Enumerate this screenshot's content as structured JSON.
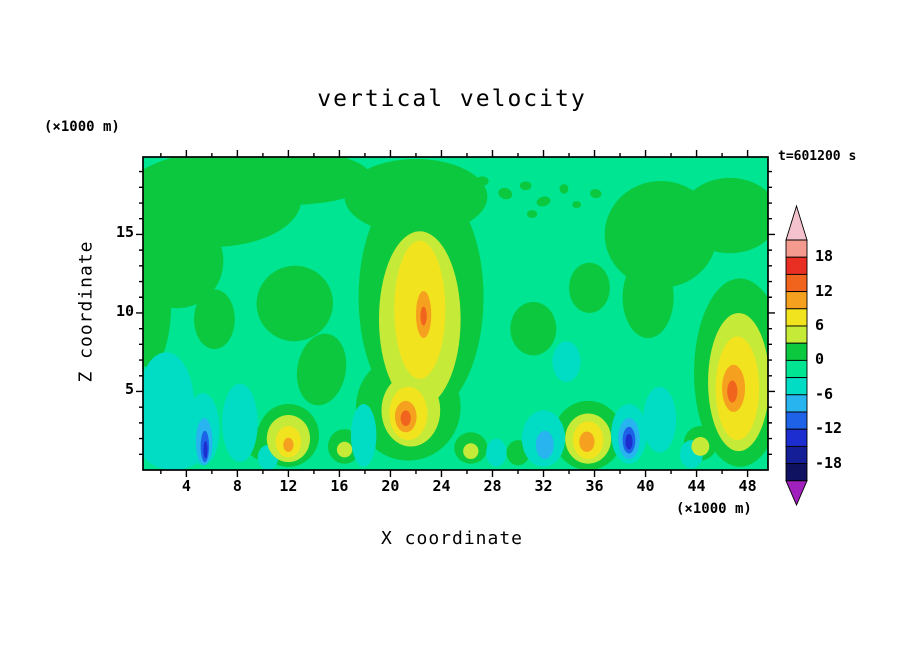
{
  "page": {
    "background": "#ffffff",
    "text_color": "#000000"
  },
  "header": {
    "title": "vertical velocity",
    "timestamp": "t=601200 s"
  },
  "axes": {
    "x": {
      "label": "X coordinate",
      "units": "(×1000 m)",
      "ticks_labeled": [
        4,
        8,
        12,
        16,
        20,
        24,
        28,
        32,
        36,
        40,
        44,
        48
      ],
      "minor_step": 2,
      "range": [
        0.6,
        49.6
      ]
    },
    "y": {
      "label": "Z coordinate",
      "units": "(×1000 m)",
      "ticks_labeled": [
        5,
        10,
        15
      ],
      "minor_step": 1,
      "range": [
        0,
        19.93
      ]
    }
  },
  "colorbar": {
    "labels": [
      18,
      12,
      6,
      0,
      -6,
      -12,
      -18
    ],
    "level_boundaries": [
      21,
      18,
      15,
      12,
      9,
      6,
      3,
      0,
      -3,
      -6,
      -9,
      -12,
      -15,
      -18,
      -21
    ],
    "segment_colors_top_to_bottom": [
      "#f59a8e",
      "#e92e24",
      "#f0641e",
      "#f5a01e",
      "#f2e31f",
      "#c6ea38",
      "#0cc83e",
      "#00e591",
      "#00ddc4",
      "#28b4ee",
      "#1e62e8",
      "#1c2ed0",
      "#141e96",
      "#0e1260"
    ],
    "above_arrow_color": "#f3c2cc",
    "below_arrow_color": "#a021bc"
  },
  "chart_data": {
    "type": "heatmap",
    "title": "vertical velocity",
    "xlabel": "X coordinate (×1000 m)",
    "ylabel": "Z coordinate (×1000 m)",
    "time_annotation": "t=601200 s",
    "x_range": [
      0.6,
      49.6
    ],
    "z_range": [
      0,
      19.93
    ],
    "contour_interval": 3,
    "value_range_shown": [
      -21,
      21
    ],
    "background": {
      "range": "-3 to 0",
      "color": "#00e591"
    },
    "levels": {
      "g": {
        "range": "0 to 3",
        "color": "#0cc83e"
      },
      "yg": {
        "range": "3 to 6",
        "color": "#c6ea38"
      },
      "y": {
        "range": "6 to 9",
        "color": "#f2e31f"
      },
      "o": {
        "range": "9 to 12",
        "color": "#f5a01e"
      },
      "ro": {
        "range": "12 to 15",
        "color": "#f0641e"
      },
      "c1": {
        "range": "-6 to -3",
        "color": "#00ddc4"
      },
      "c2": {
        "range": "-9 to -6",
        "color": "#28b4ee"
      },
      "b": {
        "range": "-12 to -9",
        "color": "#1e62e8"
      },
      "db": {
        "range": "-15 to -12",
        "color": "#1c2ed0"
      }
    },
    "features": [
      {
        "l": "g",
        "x": 6.0,
        "z": 17.2,
        "rx": 7.0,
        "rz": 3.0,
        "rot": 0
      },
      {
        "l": "g",
        "x": 12.5,
        "z": 18.6,
        "rx": 6.0,
        "rz": 1.7,
        "rot": 0
      },
      {
        "l": "g",
        "x": 3.3,
        "z": 13.3,
        "rx": 3.6,
        "rz": 3.0,
        "rot": 0
      },
      {
        "l": "g",
        "x": 1.1,
        "z": 10.5,
        "rx": 1.7,
        "rz": 4.0,
        "rot": 0
      },
      {
        "l": "g",
        "x": 6.2,
        "z": 9.6,
        "rx": 1.6,
        "rz": 1.9,
        "rot": 0
      },
      {
        "l": "g",
        "x": 12.5,
        "z": 10.6,
        "rx": 3.0,
        "rz": 2.4,
        "rot": -15
      },
      {
        "l": "g",
        "x": 14.6,
        "z": 6.4,
        "rx": 1.9,
        "rz": 2.3,
        "rot": 10
      },
      {
        "l": "g",
        "x": 22.4,
        "z": 11.0,
        "rx": 4.9,
        "rz": 7.6,
        "rot": 0
      },
      {
        "l": "g",
        "x": 22.0,
        "z": 17.4,
        "rx": 5.6,
        "rz": 2.4,
        "rot": 0
      },
      {
        "l": "g",
        "x": 21.4,
        "z": 4.0,
        "rx": 4.1,
        "rz": 3.4,
        "rot": 0
      },
      {
        "l": "g",
        "x": 31.2,
        "z": 9.0,
        "rx": 1.8,
        "rz": 1.7,
        "rot": 0
      },
      {
        "l": "g",
        "x": 35.6,
        "z": 11.6,
        "rx": 1.6,
        "rz": 1.6,
        "rot": 0
      },
      {
        "l": "g",
        "x": 41.2,
        "z": 15.0,
        "rx": 4.4,
        "rz": 3.4,
        "rot": 0
      },
      {
        "l": "g",
        "x": 40.2,
        "z": 11.0,
        "rx": 2.0,
        "rz": 2.6,
        "rot": 0
      },
      {
        "l": "g",
        "x": 46.6,
        "z": 16.2,
        "rx": 3.8,
        "rz": 2.4,
        "rot": 0
      },
      {
        "l": "g",
        "x": 47.4,
        "z": 6.2,
        "rx": 3.6,
        "rz": 6.0,
        "rot": 0
      },
      {
        "l": "g",
        "x": 12.0,
        "z": 2.2,
        "rx": 2.4,
        "rz": 2.0,
        "rot": 0
      },
      {
        "l": "g",
        "x": 16.4,
        "z": 1.5,
        "rx": 1.3,
        "rz": 1.1,
        "rot": 0
      },
      {
        "l": "g",
        "x": 26.3,
        "z": 1.4,
        "rx": 1.3,
        "rz": 1.0,
        "rot": 0
      },
      {
        "l": "g",
        "x": 30.0,
        "z": 1.1,
        "rx": 0.9,
        "rz": 0.8,
        "rot": 0
      },
      {
        "l": "g",
        "x": 35.5,
        "z": 2.2,
        "rx": 2.7,
        "rz": 2.2,
        "rot": 0
      },
      {
        "l": "g",
        "x": 44.3,
        "z": 1.7,
        "rx": 1.3,
        "rz": 1.1,
        "rot": 0
      },
      {
        "l": "g",
        "x": 10.1,
        "z": 1.7,
        "rx": 1.4,
        "rz": 1.1,
        "rot": 0
      },
      {
        "l": "g",
        "x": 29.0,
        "z": 17.6,
        "rx": 0.55,
        "rz": 0.35,
        "rot": 20
      },
      {
        "l": "g",
        "x": 30.6,
        "z": 18.1,
        "rx": 0.45,
        "rz": 0.28,
        "rot": 0
      },
      {
        "l": "g",
        "x": 32.0,
        "z": 17.1,
        "rx": 0.55,
        "rz": 0.3,
        "rot": -15
      },
      {
        "l": "g",
        "x": 33.6,
        "z": 17.9,
        "rx": 0.35,
        "rz": 0.3,
        "rot": 0
      },
      {
        "l": "g",
        "x": 31.1,
        "z": 16.3,
        "rx": 0.4,
        "rz": 0.25,
        "rot": 0
      },
      {
        "l": "g",
        "x": 34.6,
        "z": 16.9,
        "rx": 0.35,
        "rz": 0.22,
        "rot": 0
      },
      {
        "l": "g",
        "x": 36.1,
        "z": 17.6,
        "rx": 0.45,
        "rz": 0.28,
        "rot": 10
      },
      {
        "l": "g",
        "x": 27.2,
        "z": 18.4,
        "rx": 0.5,
        "rz": 0.3,
        "rot": 0
      },
      {
        "l": "c1",
        "x": 2.4,
        "z": 4.2,
        "rx": 2.2,
        "rz": 3.3,
        "rot": 0
      },
      {
        "l": "c1",
        "x": 3.0,
        "z": 1.5,
        "rx": 2.6,
        "rz": 1.5,
        "rot": 0
      },
      {
        "l": "c1",
        "x": 5.3,
        "z": 2.6,
        "rx": 1.3,
        "rz": 2.3,
        "rot": 0
      },
      {
        "l": "c1",
        "x": 8.2,
        "z": 3.0,
        "rx": 1.4,
        "rz": 2.5,
        "rot": 0
      },
      {
        "l": "c1",
        "x": 10.4,
        "z": 0.8,
        "rx": 0.8,
        "rz": 0.8,
        "rot": 0
      },
      {
        "l": "c1",
        "x": 17.9,
        "z": 2.2,
        "rx": 1.0,
        "rz": 2.0,
        "rot": 0
      },
      {
        "l": "c1",
        "x": 28.3,
        "z": 1.1,
        "rx": 0.8,
        "rz": 0.9,
        "rot": 0
      },
      {
        "l": "c1",
        "x": 32.0,
        "z": 2.0,
        "rx": 1.7,
        "rz": 1.8,
        "rot": 0
      },
      {
        "l": "c1",
        "x": 33.8,
        "z": 6.9,
        "rx": 1.1,
        "rz": 1.3,
        "rot": 0
      },
      {
        "l": "c1",
        "x": 38.7,
        "z": 2.3,
        "rx": 1.4,
        "rz": 1.9,
        "rot": 0
      },
      {
        "l": "c1",
        "x": 41.1,
        "z": 3.2,
        "rx": 1.3,
        "rz": 2.1,
        "rot": 0
      },
      {
        "l": "c1",
        "x": 43.6,
        "z": 1.0,
        "rx": 0.9,
        "rz": 0.9,
        "rot": 0
      },
      {
        "l": "yg",
        "x": 22.3,
        "z": 9.6,
        "rx": 3.2,
        "rz": 5.6,
        "rot": 0
      },
      {
        "l": "yg",
        "x": 21.6,
        "z": 3.8,
        "rx": 2.3,
        "rz": 2.3,
        "rot": 0
      },
      {
        "l": "yg",
        "x": 47.3,
        "z": 5.6,
        "rx": 2.4,
        "rz": 4.4,
        "rot": 0
      },
      {
        "l": "yg",
        "x": 12.0,
        "z": 2.0,
        "rx": 1.7,
        "rz": 1.5,
        "rot": 0
      },
      {
        "l": "yg",
        "x": 35.5,
        "z": 2.0,
        "rx": 1.8,
        "rz": 1.6,
        "rot": 0
      },
      {
        "l": "yg",
        "x": 16.4,
        "z": 1.3,
        "rx": 0.6,
        "rz": 0.5,
        "rot": 0
      },
      {
        "l": "yg",
        "x": 44.3,
        "z": 1.5,
        "rx": 0.7,
        "rz": 0.6,
        "rot": 0
      },
      {
        "l": "yg",
        "x": 26.3,
        "z": 1.2,
        "rx": 0.6,
        "rz": 0.5,
        "rot": 0
      },
      {
        "l": "c2",
        "x": 5.4,
        "z": 1.8,
        "rx": 0.65,
        "rz": 1.5,
        "rot": 0
      },
      {
        "l": "c2",
        "x": 38.7,
        "z": 2.0,
        "rx": 0.85,
        "rz": 1.3,
        "rot": 0
      },
      {
        "l": "c2",
        "x": 32.1,
        "z": 1.6,
        "rx": 0.7,
        "rz": 0.9,
        "rot": 0
      },
      {
        "l": "y",
        "x": 22.3,
        "z": 10.2,
        "rx": 2.0,
        "rz": 4.4,
        "rot": 0
      },
      {
        "l": "y",
        "x": 21.4,
        "z": 3.6,
        "rx": 1.5,
        "rz": 1.7,
        "rot": 0
      },
      {
        "l": "y",
        "x": 47.2,
        "z": 5.2,
        "rx": 1.7,
        "rz": 3.3,
        "rot": 0
      },
      {
        "l": "y",
        "x": 12.0,
        "z": 1.8,
        "rx": 1.0,
        "rz": 1.0,
        "rot": 0
      },
      {
        "l": "y",
        "x": 35.5,
        "z": 1.9,
        "rx": 1.2,
        "rz": 1.2,
        "rot": 0
      },
      {
        "l": "b",
        "x": 5.45,
        "z": 1.5,
        "rx": 0.33,
        "rz": 1.0,
        "rot": 0
      },
      {
        "l": "b",
        "x": 38.7,
        "z": 1.9,
        "rx": 0.5,
        "rz": 0.85,
        "rot": 0
      },
      {
        "l": "o",
        "x": 22.6,
        "z": 9.9,
        "rx": 0.6,
        "rz": 1.5,
        "rot": 0
      },
      {
        "l": "o",
        "x": 21.2,
        "z": 3.4,
        "rx": 0.85,
        "rz": 1.0,
        "rot": 0
      },
      {
        "l": "o",
        "x": 46.9,
        "z": 5.2,
        "rx": 0.9,
        "rz": 1.5,
        "rot": 0
      },
      {
        "l": "o",
        "x": 35.4,
        "z": 1.8,
        "rx": 0.6,
        "rz": 0.65,
        "rot": 0
      },
      {
        "l": "o",
        "x": 12.0,
        "z": 1.6,
        "rx": 0.4,
        "rz": 0.45,
        "rot": 0
      },
      {
        "l": "db",
        "x": 38.7,
        "z": 1.8,
        "rx": 0.28,
        "rz": 0.5,
        "rot": 0
      },
      {
        "l": "db",
        "x": 5.5,
        "z": 1.3,
        "rx": 0.16,
        "rz": 0.55,
        "rot": 0
      },
      {
        "l": "ro",
        "x": 21.2,
        "z": 3.3,
        "rx": 0.4,
        "rz": 0.5,
        "rot": 0
      },
      {
        "l": "ro",
        "x": 46.8,
        "z": 5.0,
        "rx": 0.4,
        "rz": 0.7,
        "rot": 0
      },
      {
        "l": "ro",
        "x": 22.6,
        "z": 9.8,
        "rx": 0.25,
        "rz": 0.6,
        "rot": 0
      }
    ]
  }
}
